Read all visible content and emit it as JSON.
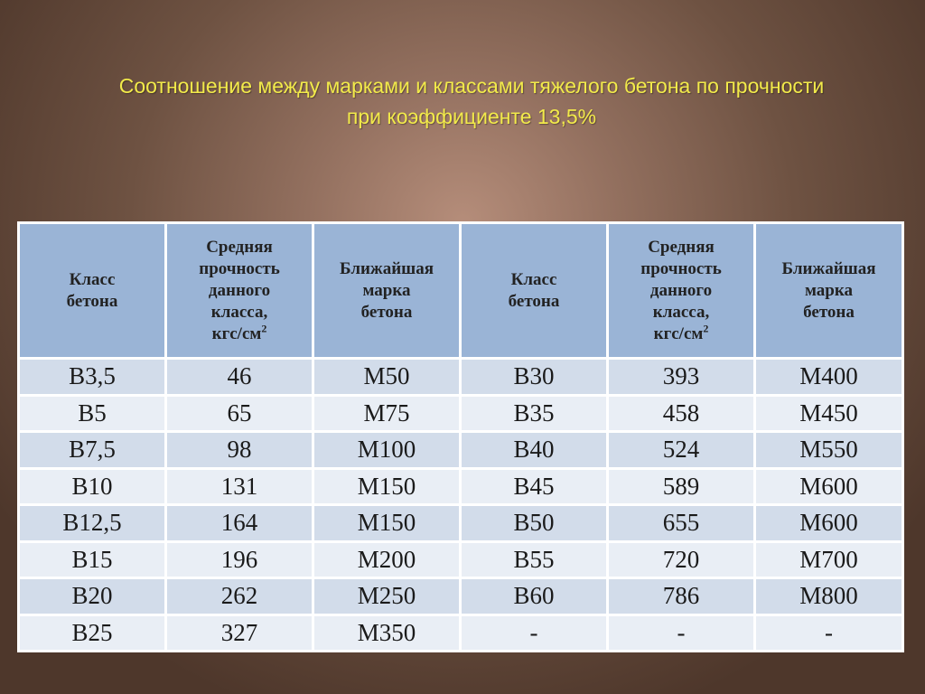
{
  "title": {
    "line1": "Соотношение между марками и классами тяжелого бетона по прочности",
    "line2": "при коэффициенте 13,5%"
  },
  "colors": {
    "title": "#f2ea4a",
    "header_bg": "#9ab4d6",
    "row_dark": "#d2dcea",
    "row_light": "#e9eef5"
  },
  "table": {
    "headers": [
      {
        "lines": [
          "Класс",
          "бетона"
        ]
      },
      {
        "lines": [
          "Средняя",
          "прочность",
          "данного",
          "класса,",
          "кгс/см"
        ],
        "sup": "2"
      },
      {
        "lines": [
          "Ближайшая",
          "марка",
          "бетона"
        ]
      },
      {
        "lines": [
          "Класс",
          "бетона"
        ]
      },
      {
        "lines": [
          "Средняя",
          "прочность",
          "данного",
          "класса,",
          "кгс/см"
        ],
        "sup": "2"
      },
      {
        "lines": [
          "Ближайшая",
          "марка",
          "бетона"
        ]
      }
    ],
    "rows": [
      [
        "B3,5",
        "46",
        "M50",
        "B30",
        "393",
        "M400"
      ],
      [
        "B5",
        "65",
        "M75",
        "B35",
        "458",
        "M450"
      ],
      [
        "B7,5",
        "98",
        "M100",
        "B40",
        "524",
        "M550"
      ],
      [
        "B10",
        "131",
        "M150",
        "B45",
        "589",
        "M600"
      ],
      [
        "B12,5",
        "164",
        "M150",
        "B50",
        "655",
        "M600"
      ],
      [
        "B15",
        "196",
        "M200",
        "B55",
        "720",
        "M700"
      ],
      [
        "B20",
        "262",
        "M250",
        "B60",
        "786",
        "M800"
      ],
      [
        "B25",
        "327",
        "M350",
        "-",
        "-",
        "-"
      ]
    ]
  }
}
